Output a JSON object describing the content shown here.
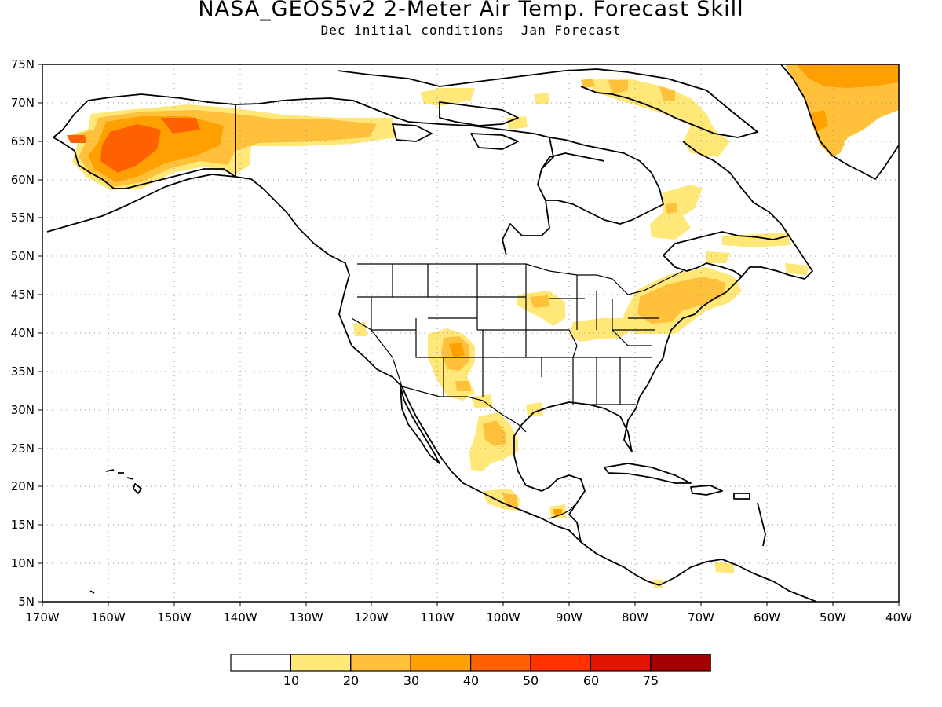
{
  "title": "NASA_GEOS5v2 2-Meter Air Temp. Forecast Skill",
  "subtitle_left": "Dec initial conditions",
  "subtitle_right": "Jan Forecast",
  "map": {
    "lon_range": [
      -170,
      -40
    ],
    "lat_range": [
      5,
      75
    ],
    "lon_ticks": [
      "170W",
      "160W",
      "150W",
      "140W",
      "130W",
      "120W",
      "110W",
      "100W",
      "90W",
      "80W",
      "70W",
      "60W",
      "50W",
      "40W"
    ],
    "lat_ticks": [
      "5N",
      "10N",
      "15N",
      "20N",
      "25N",
      "30N",
      "35N",
      "40N",
      "45N",
      "50N",
      "55N",
      "60N",
      "65N",
      "70N",
      "75N"
    ],
    "grid": "dotted"
  },
  "colorbar": {
    "colors": [
      "#ffffff",
      "#ffe778",
      "#ffc03c",
      "#ffa000",
      "#ff6000",
      "#ff3200",
      "#e11400",
      "#a50000"
    ],
    "labels": [
      "10",
      "20",
      "30",
      "40",
      "50",
      "60",
      "75"
    ]
  }
}
